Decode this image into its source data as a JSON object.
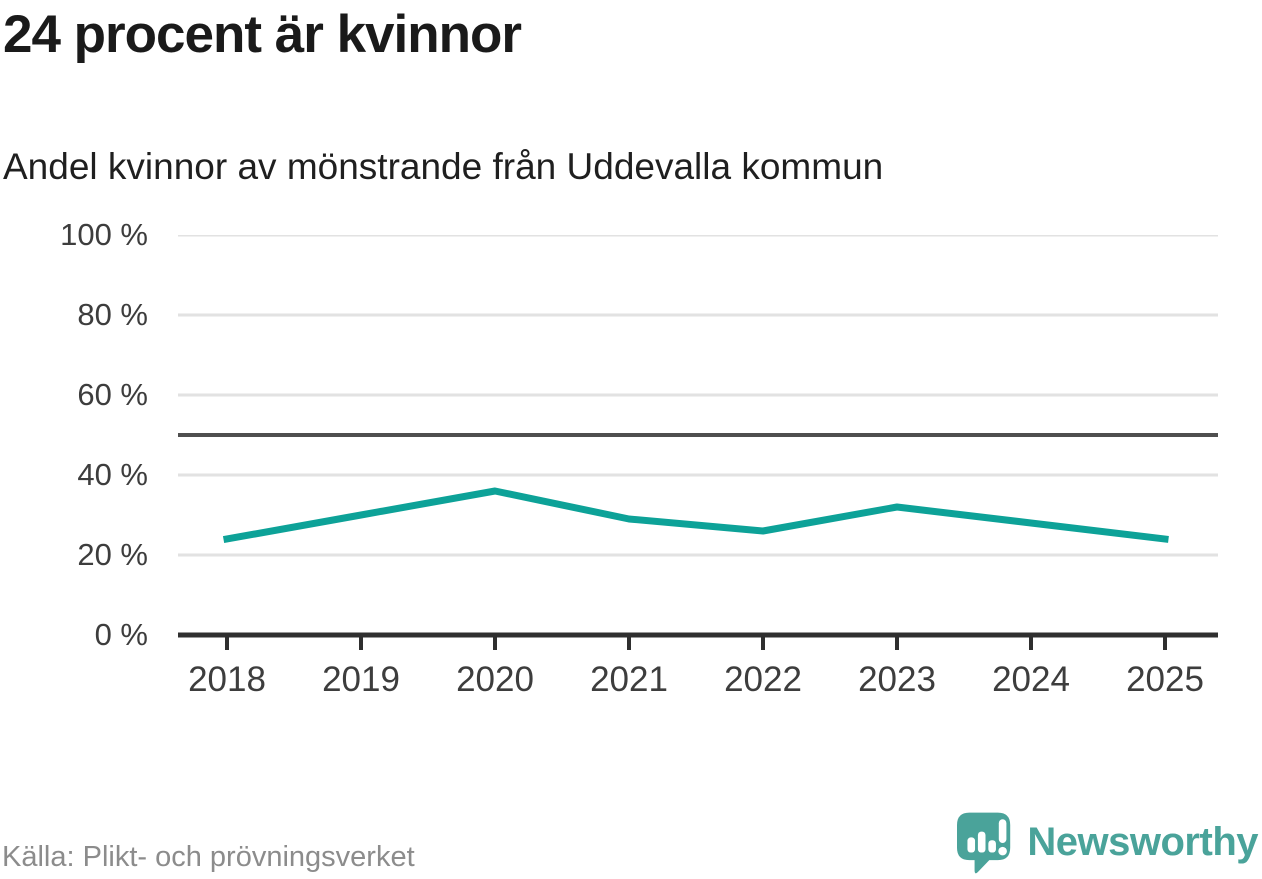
{
  "header": {
    "title": "24 procent är kvinnor",
    "subtitle": "Andel kvinnor av mönstrande från Uddevalla kommun"
  },
  "chart_data": {
    "type": "line",
    "title": "24 procent är kvinnor",
    "subtitle": "Andel kvinnor av mönstrande från Uddevalla kommun",
    "x": [
      "2018",
      "2019",
      "2020",
      "2021",
      "2022",
      "2023",
      "2024",
      "2025"
    ],
    "series": [
      {
        "name": "Andel kvinnor",
        "values": [
          24,
          30,
          36,
          29,
          26,
          32,
          28,
          24
        ]
      }
    ],
    "unit": "%",
    "ylim": [
      0,
      100
    ],
    "y_tick_labels": [
      "100 %",
      "80 %",
      "60 %",
      "40 %",
      "20 %",
      "0 %"
    ],
    "x_tick_labels": [
      "2018",
      "2019",
      "2020",
      "2021",
      "2022",
      "2023",
      "2024",
      "2025"
    ],
    "reference_line": 50,
    "grid": "horizontal",
    "legend": "none",
    "line_color": "#0da298",
    "reference_line_color": "#4f4f4f"
  },
  "footer": {
    "source": "Källa: Plikt- och prövningsverket",
    "logo_text": "Newsworthy",
    "logo_color": "#4aa39a"
  }
}
